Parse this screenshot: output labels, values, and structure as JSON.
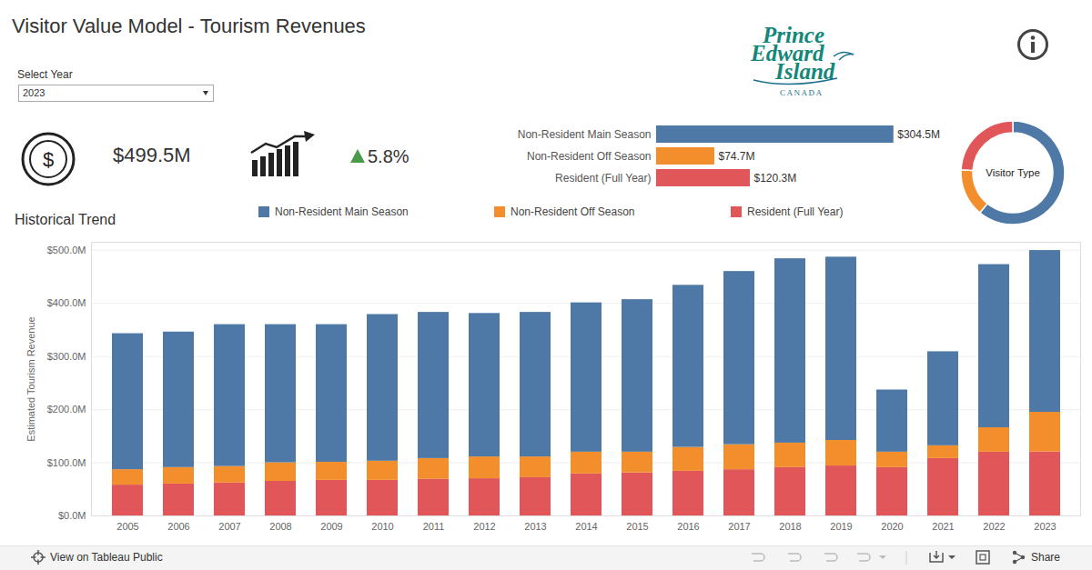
{
  "header": {
    "title": "Visitor Value Model - Tourism Revenues",
    "select_label": "Select Year",
    "selected": "2023",
    "logo": {
      "lines": [
        "Prince",
        "Edward",
        "Island"
      ],
      "country": "CANADA"
    }
  },
  "kpis": {
    "currency_symbol": "$",
    "total": "$499.5M",
    "change": "5.8%"
  },
  "footer": {
    "link": "View on Tableau Public",
    "share": "Share"
  },
  "chart_data": [
    {
      "type": "bar",
      "orientation": "horizontal",
      "categories": [
        "Non-Resident Main Season",
        "Non-Resident Off Season",
        "Resident (Full Year)"
      ],
      "values": [
        304.5,
        74.7,
        120.3
      ],
      "value_labels": [
        "$304.5M",
        "$74.7M",
        "$120.3M"
      ],
      "colors": [
        "#4e79a7",
        "#f28e2b",
        "#e15759"
      ],
      "data_labels": true,
      "tick_labels": "y",
      "xlim": [
        0,
        355
      ]
    },
    {
      "type": "donut",
      "title": "Visitor Type",
      "categories": [
        "Non-Resident Main Season",
        "Non-Resident Off Season",
        "Resident (Full Year)"
      ],
      "values": [
        304.5,
        74.7,
        120.3
      ],
      "colors": [
        "#4e79a7",
        "#f28e2b",
        "#e15759"
      ]
    },
    {
      "type": "bar",
      "stacked": true,
      "title": "Historical Trend",
      "ylabel": "Estimated Tourism Revenue",
      "categories": [
        "2005",
        "2006",
        "2007",
        "2008",
        "2009",
        "2010",
        "2011",
        "2012",
        "2013",
        "2014",
        "2015",
        "2016",
        "2017",
        "2018",
        "2019",
        "2020",
        "2021",
        "2022",
        "2023"
      ],
      "series": [
        {
          "name": "Non-Resident Main Season",
          "color": "#4e79a7",
          "values": [
            256,
            255,
            267,
            260,
            259,
            276,
            275,
            270,
            272,
            281,
            287,
            305,
            326,
            347,
            345,
            117,
            177,
            307,
            304.5
          ]
        },
        {
          "name": "Non-Resident Off Season",
          "color": "#f28e2b",
          "values": [
            29,
            31,
            31,
            35,
            34,
            36,
            39,
            41,
            39,
            41,
            39,
            45,
            47,
            46,
            48,
            29,
            24,
            46,
            74.7
          ]
        },
        {
          "name": "Resident (Full Year)",
          "color": "#e15759",
          "values": [
            58,
            60,
            62,
            65,
            67,
            67,
            69,
            70,
            72,
            79,
            81,
            84,
            87,
            91,
            94,
            91,
            108,
            120,
            120.3
          ]
        }
      ],
      "ylim": [
        0,
        515
      ],
      "yticks": [
        {
          "value": 0,
          "label": "$0.0M"
        },
        {
          "value": 100,
          "label": "$100.0M"
        },
        {
          "value": 200,
          "label": "$200.0M"
        },
        {
          "value": 300,
          "label": "$300.0M"
        },
        {
          "value": 400,
          "label": "$400.0M"
        },
        {
          "value": 500,
          "label": "$500.0M"
        }
      ],
      "grid": true,
      "legend": "top"
    }
  ]
}
